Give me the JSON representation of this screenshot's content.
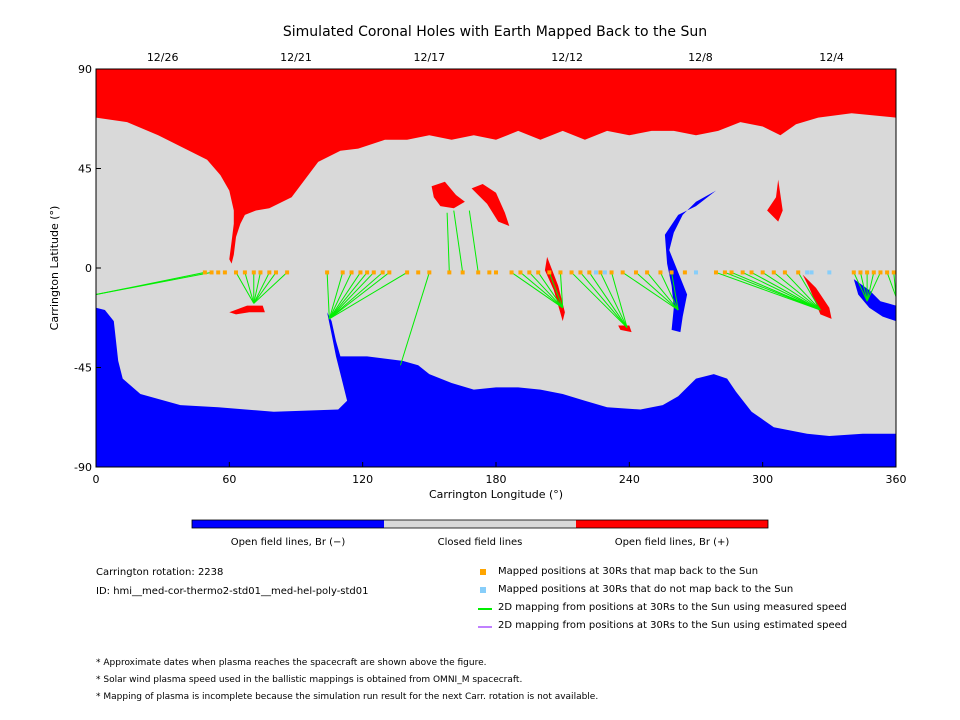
{
  "chart_data": {
    "type": "map",
    "title": "Simulated Coronal Holes with Earth Mapped Back to the Sun",
    "xlabel": "Carrington Longitude (°)",
    "ylabel": "Carrington Latitude (°)",
    "xlim": [
      0,
      360
    ],
    "ylim": [
      -90,
      90
    ],
    "x_ticks": [
      "0",
      "60",
      "120",
      "180",
      "240",
      "300",
      "360"
    ],
    "y_ticks": [
      "90",
      "45",
      "0",
      "-45",
      "-90"
    ],
    "top_date_ticks": [
      {
        "label": "12/26",
        "lon": 30
      },
      {
        "label": "12/21",
        "lon": 90
      },
      {
        "label": "12/17",
        "lon": 150
      },
      {
        "label": "12/12",
        "lon": 212
      },
      {
        "label": "12/8",
        "lon": 272
      },
      {
        "label": "12/4",
        "lon": 331
      }
    ],
    "colorbar": {
      "colors": [
        "#0000ff",
        "#d9d9d9",
        "#ff0000"
      ],
      "labels": [
        "Open field lines, Br (−)",
        "Closed field lines",
        "Open field lines, Br (+)"
      ]
    },
    "mapped_points_lon": [
      49,
      52,
      55,
      58,
      63,
      67,
      71,
      74,
      78,
      81,
      86,
      104,
      111,
      115,
      119,
      122,
      125,
      129,
      132,
      140,
      145,
      150,
      159,
      165,
      172,
      177,
      180,
      187,
      191,
      195,
      199,
      204,
      209,
      214,
      218,
      222,
      227,
      232,
      237,
      243,
      248,
      254,
      259,
      265,
      279,
      283,
      286,
      291,
      295,
      300,
      305,
      310,
      316,
      341,
      344,
      347,
      350,
      353,
      356,
      359
    ],
    "unmapped_points_lon": [
      225,
      229,
      270,
      320,
      322,
      330
    ],
    "mapping_lines": [
      {
        "from": [
          49,
          -2
        ],
        "to": [
          0,
          -12
        ]
      },
      {
        "from": [
          52,
          -2
        ],
        "to": [
          0,
          -12
        ]
      },
      {
        "from": [
          63,
          -2
        ],
        "to": [
          71,
          -16
        ]
      },
      {
        "from": [
          67,
          -2
        ],
        "to": [
          71,
          -16
        ]
      },
      {
        "from": [
          71,
          -2
        ],
        "to": [
          71,
          -16
        ]
      },
      {
        "from": [
          74,
          -2
        ],
        "to": [
          71,
          -16
        ]
      },
      {
        "from": [
          78,
          -2
        ],
        "to": [
          71,
          -16
        ]
      },
      {
        "from": [
          81,
          -2
        ],
        "to": [
          71,
          -16
        ]
      },
      {
        "from": [
          86,
          -2
        ],
        "to": [
          71,
          -16
        ]
      },
      {
        "from": [
          104,
          -2
        ],
        "to": [
          105,
          -23
        ]
      },
      {
        "from": [
          111,
          -2
        ],
        "to": [
          105,
          -23
        ]
      },
      {
        "from": [
          115,
          -2
        ],
        "to": [
          105,
          -23
        ]
      },
      {
        "from": [
          119,
          -2
        ],
        "to": [
          105,
          -23
        ]
      },
      {
        "from": [
          122,
          -2
        ],
        "to": [
          105,
          -23
        ]
      },
      {
        "from": [
          125,
          -2
        ],
        "to": [
          105,
          -23
        ]
      },
      {
        "from": [
          129,
          -2
        ],
        "to": [
          105,
          -23
        ]
      },
      {
        "from": [
          132,
          -2
        ],
        "to": [
          105,
          -23
        ]
      },
      {
        "from": [
          140,
          -2
        ],
        "to": [
          105,
          -23
        ]
      },
      {
        "from": [
          150,
          -2
        ],
        "to": [
          137,
          -44
        ]
      },
      {
        "from": [
          159,
          -2
        ],
        "to": [
          158,
          25
        ]
      },
      {
        "from": [
          165,
          -2
        ],
        "to": [
          161,
          26
        ]
      },
      {
        "from": [
          172,
          -2
        ],
        "to": [
          168,
          26
        ]
      },
      {
        "from": [
          187,
          -2
        ],
        "to": [
          210,
          -18
        ]
      },
      {
        "from": [
          191,
          -2
        ],
        "to": [
          210,
          -18
        ]
      },
      {
        "from": [
          195,
          -2
        ],
        "to": [
          210,
          -18
        ]
      },
      {
        "from": [
          199,
          -2
        ],
        "to": [
          210,
          -18
        ]
      },
      {
        "from": [
          204,
          -2
        ],
        "to": [
          210,
          -18
        ]
      },
      {
        "from": [
          209,
          -2
        ],
        "to": [
          210,
          -18
        ]
      },
      {
        "from": [
          214,
          -2
        ],
        "to": [
          239,
          -27
        ]
      },
      {
        "from": [
          218,
          -2
        ],
        "to": [
          239,
          -27
        ]
      },
      {
        "from": [
          222,
          -2
        ],
        "to": [
          239,
          -27
        ]
      },
      {
        "from": [
          227,
          -2
        ],
        "to": [
          239,
          -27
        ]
      },
      {
        "from": [
          232,
          -2
        ],
        "to": [
          239,
          -27
        ]
      },
      {
        "from": [
          237,
          -2
        ],
        "to": [
          262,
          -19
        ]
      },
      {
        "from": [
          243,
          -2
        ],
        "to": [
          262,
          -19
        ]
      },
      {
        "from": [
          248,
          -2
        ],
        "to": [
          262,
          -19
        ]
      },
      {
        "from": [
          254,
          -2
        ],
        "to": [
          262,
          -19
        ]
      },
      {
        "from": [
          259,
          -2
        ],
        "to": [
          262,
          -19
        ]
      },
      {
        "from": [
          279,
          -2
        ],
        "to": [
          326,
          -19
        ]
      },
      {
        "from": [
          283,
          -2
        ],
        "to": [
          326,
          -19
        ]
      },
      {
        "from": [
          286,
          -2
        ],
        "to": [
          326,
          -19
        ]
      },
      {
        "from": [
          291,
          -2
        ],
        "to": [
          326,
          -19
        ]
      },
      {
        "from": [
          295,
          -2
        ],
        "to": [
          326,
          -19
        ]
      },
      {
        "from": [
          300,
          -2
        ],
        "to": [
          326,
          -19
        ]
      },
      {
        "from": [
          305,
          -2
        ],
        "to": [
          326,
          -19
        ]
      },
      {
        "from": [
          310,
          -2
        ],
        "to": [
          326,
          -19
        ]
      },
      {
        "from": [
          316,
          -2
        ],
        "to": [
          326,
          -19
        ]
      },
      {
        "from": [
          341,
          -2
        ],
        "to": [
          347,
          -15
        ]
      },
      {
        "from": [
          344,
          -2
        ],
        "to": [
          347,
          -15
        ]
      },
      {
        "from": [
          347,
          -2
        ],
        "to": [
          347,
          -15
        ]
      },
      {
        "from": [
          350,
          -2
        ],
        "to": [
          347,
          -15
        ]
      },
      {
        "from": [
          353,
          -2
        ],
        "to": [
          347,
          -15
        ]
      },
      {
        "from": [
          356,
          -2
        ],
        "to": [
          360,
          -13
        ]
      },
      {
        "from": [
          359,
          -2
        ],
        "to": [
          360,
          -13
        ]
      }
    ],
    "regions": {
      "north_positive_cap": [
        [
          0,
          90
        ],
        [
          360,
          90
        ],
        [
          360,
          68
        ],
        [
          340,
          70
        ],
        [
          325,
          68
        ],
        [
          315,
          65
        ],
        [
          308,
          60
        ],
        [
          300,
          64
        ],
        [
          290,
          66
        ],
        [
          280,
          62
        ],
        [
          270,
          60
        ],
        [
          260,
          62
        ],
        [
          250,
          62
        ],
        [
          240,
          60
        ],
        [
          230,
          62
        ],
        [
          220,
          58
        ],
        [
          210,
          62
        ],
        [
          200,
          58
        ],
        [
          190,
          62
        ],
        [
          180,
          58
        ],
        [
          170,
          60
        ],
        [
          160,
          58
        ],
        [
          150,
          60
        ],
        [
          140,
          58
        ],
        [
          130,
          58
        ],
        [
          118,
          54
        ],
        [
          110,
          53
        ],
        [
          100,
          48
        ],
        [
          88,
          32
        ],
        [
          78,
          27
        ],
        [
          72,
          26
        ],
        [
          67,
          24
        ],
        [
          65,
          20
        ],
        [
          63,
          14
        ],
        [
          62,
          6
        ],
        [
          61,
          2
        ],
        [
          60,
          4
        ],
        [
          61,
          12
        ],
        [
          62,
          20
        ],
        [
          62,
          26
        ],
        [
          60,
          35
        ],
        [
          56,
          42
        ],
        [
          50,
          49
        ],
        [
          40,
          54
        ],
        [
          28,
          60
        ],
        [
          14,
          66
        ],
        [
          0,
          68
        ]
      ],
      "south_negative_cap": [
        [
          0,
          -90
        ],
        [
          360,
          -90
        ],
        [
          360,
          -75
        ],
        [
          345,
          -75
        ],
        [
          330,
          -76
        ],
        [
          320,
          -75
        ],
        [
          305,
          -72
        ],
        [
          295,
          -65
        ],
        [
          288,
          -56
        ],
        [
          284,
          -50
        ],
        [
          278,
          -48
        ],
        [
          270,
          -50
        ],
        [
          262,
          -58
        ],
        [
          255,
          -62
        ],
        [
          245,
          -64
        ],
        [
          230,
          -63
        ],
        [
          220,
          -60
        ],
        [
          210,
          -57
        ],
        [
          200,
          -55
        ],
        [
          190,
          -54
        ],
        [
          180,
          -54
        ],
        [
          170,
          -55
        ],
        [
          160,
          -52
        ],
        [
          150,
          -48
        ],
        [
          145,
          -44
        ],
        [
          138,
          -42
        ],
        [
          122,
          -40
        ],
        [
          110,
          -40
        ],
        [
          108,
          -33
        ],
        [
          106,
          -24
        ],
        [
          104,
          -20
        ],
        [
          106,
          -30
        ],
        [
          108,
          -40
        ],
        [
          111,
          -52
        ],
        [
          113,
          -60
        ],
        [
          109,
          -64
        ],
        [
          80,
          -65
        ],
        [
          55,
          -63
        ],
        [
          38,
          -62
        ],
        [
          20,
          -57
        ],
        [
          12,
          -50
        ],
        [
          10,
          -42
        ],
        [
          8,
          -24
        ],
        [
          4,
          -19
        ],
        [
          0,
          -18
        ],
        [
          0,
          -75
        ]
      ],
      "neg_hole_260": [
        [
          256,
          15
        ],
        [
          262,
          24
        ],
        [
          270,
          28
        ],
        [
          279,
          35
        ],
        [
          270,
          30
        ],
        [
          264,
          24
        ],
        [
          260,
          16
        ],
        [
          258,
          8
        ],
        [
          262,
          -2
        ],
        [
          266,
          -12
        ],
        [
          264,
          -22
        ],
        [
          263,
          -29
        ],
        [
          259,
          -28
        ],
        [
          260,
          -18
        ],
        [
          259,
          -8
        ],
        [
          257,
          2
        ]
      ],
      "neg_hole_350": [
        [
          341,
          -5
        ],
        [
          348,
          -10
        ],
        [
          353,
          -15
        ],
        [
          360,
          -17
        ],
        [
          360,
          -24
        ],
        [
          354,
          -22
        ],
        [
          348,
          -18
        ],
        [
          343,
          -12
        ]
      ],
      "pos_hole_155": [
        [
          151,
          37
        ],
        [
          157,
          39
        ],
        [
          162,
          33
        ],
        [
          166,
          30
        ],
        [
          161,
          27
        ],
        [
          155,
          28
        ],
        [
          152,
          32
        ]
      ],
      "pos_hole_175": [
        [
          169,
          36
        ],
        [
          174,
          38
        ],
        [
          180,
          34
        ],
        [
          184,
          25
        ],
        [
          186,
          19
        ],
        [
          181,
          21
        ],
        [
          176,
          29
        ],
        [
          172,
          33
        ]
      ],
      "pos_hole_70": [
        [
          60,
          -20
        ],
        [
          68,
          -17
        ],
        [
          75,
          -17
        ],
        [
          76,
          -20
        ],
        [
          69,
          -20
        ],
        [
          63,
          -21
        ]
      ],
      "pos_hole_210": [
        [
          203,
          5
        ],
        [
          208,
          -8
        ],
        [
          211,
          -20
        ],
        [
          210,
          -24
        ],
        [
          206,
          -10
        ],
        [
          202,
          -1
        ]
      ],
      "pos_hole_240": [
        [
          235,
          -26
        ],
        [
          240,
          -26
        ],
        [
          241,
          -29
        ],
        [
          236,
          -28
        ]
      ],
      "pos_hole_305": [
        [
          302,
          26
        ],
        [
          306,
          32
        ],
        [
          307,
          40
        ],
        [
          309,
          26
        ],
        [
          307,
          21
        ]
      ],
      "pos_hole_325": [
        [
          318,
          -3
        ],
        [
          324,
          -9
        ],
        [
          330,
          -18
        ],
        [
          331,
          -23
        ],
        [
          326,
          -21
        ],
        [
          321,
          -9
        ]
      ]
    }
  },
  "info": {
    "carrington_rotation": "Carrington rotation: 2238",
    "model_id": "ID: hmi__med-cor-thermo2-std01__med-hel-poly-std01"
  },
  "legend": {
    "items": [
      {
        "label": "Mapped positions at 30Rs that map back to the Sun",
        "color": "#ffa500",
        "kind": "square"
      },
      {
        "label": "Mapped positions at 30Rs that do not map back to the Sun",
        "color": "#87cefa",
        "kind": "square"
      },
      {
        "label": "2D mapping from positions at 30Rs to the Sun using measured speed",
        "color": "#00ee00",
        "kind": "line"
      },
      {
        "label": "2D mapping from positions at 30Rs to the Sun using estimated speed",
        "color": "#c080ff",
        "kind": "line"
      }
    ]
  },
  "notes": [
    "* Approximate dates when plasma reaches the spacecraft are shown above the figure.",
    "* Solar wind plasma speed used in the ballistic mappings is obtained from OMNI_M spacecraft.",
    "* Mapping of plasma is incomplete because the simulation run result for the next Carr. rotation is not available."
  ],
  "colors": {
    "open_negative": "#0000ff",
    "closed": "#d9d9d9",
    "open_positive": "#ff0000",
    "mapped": "#ffa500",
    "unmapped": "#87cefa",
    "measured_line": "#00ee00",
    "estimated_line": "#c080ff"
  }
}
